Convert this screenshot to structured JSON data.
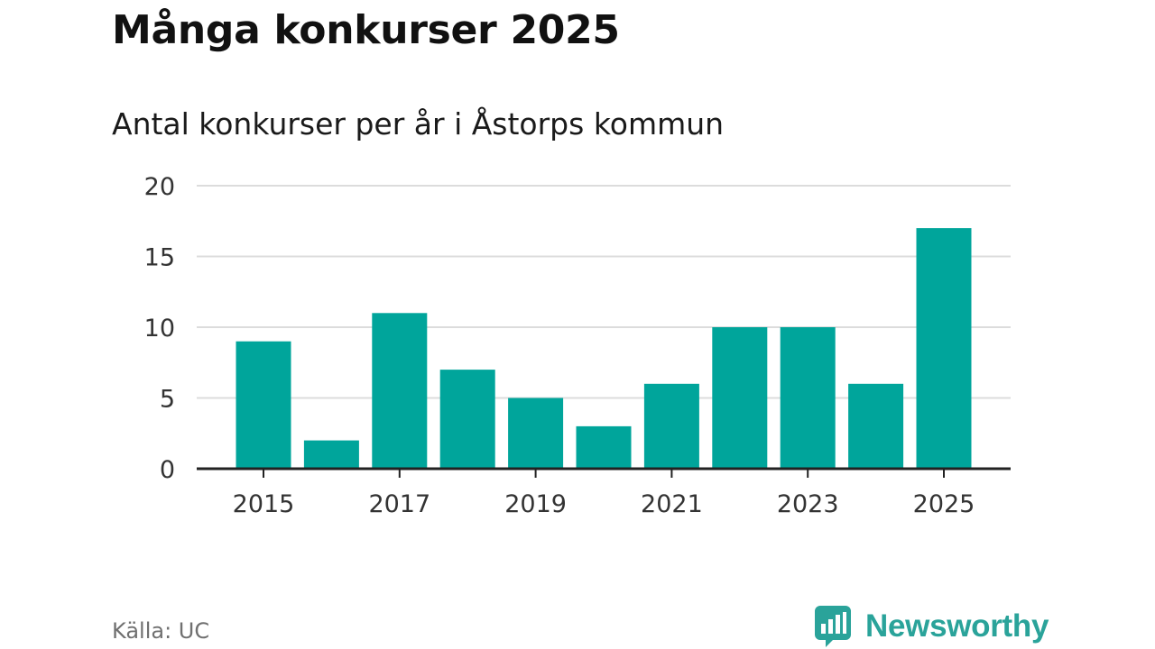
{
  "header": {
    "title": "Många konkurser 2025",
    "subtitle": "Antal konkurser per år i Åstorps kommun"
  },
  "footer": {
    "source": "Källa: UC",
    "brand": "Newsworthy"
  },
  "colors": {
    "bar": "#00a59b",
    "grid": "#dcdcdc",
    "axis": "#222222",
    "brand": "#2aa39a"
  },
  "chart_data": {
    "type": "bar",
    "title": "Antal konkurser per år i Åstorps kommun",
    "xlabel": "",
    "ylabel": "",
    "categories": [
      "2015",
      "2016",
      "2017",
      "2018",
      "2019",
      "2020",
      "2021",
      "2022",
      "2023",
      "2024",
      "2025"
    ],
    "values": [
      9,
      2,
      11,
      7,
      5,
      3,
      6,
      10,
      10,
      6,
      17
    ],
    "x_tick_labels": [
      "2015",
      "2017",
      "2019",
      "2021",
      "2023",
      "2025"
    ],
    "y_ticks": [
      0,
      5,
      10,
      15,
      20
    ],
    "ylim": [
      0,
      20
    ],
    "grid": true,
    "legend": "none"
  }
}
